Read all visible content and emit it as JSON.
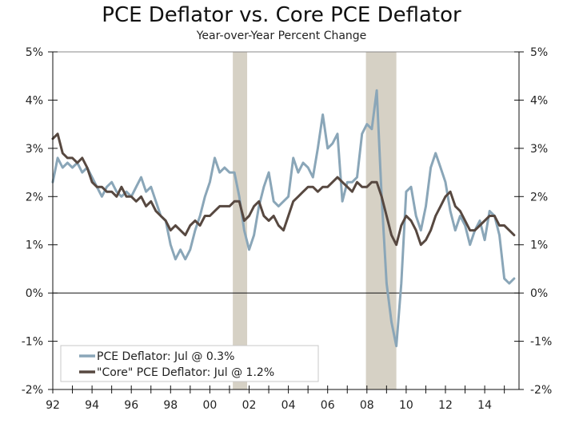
{
  "chart_data": {
    "type": "line",
    "title": "PCE Deflator vs. Core PCE Deflator",
    "subtitle": "Year-over-Year Percent Change",
    "xlabel": "",
    "ylabel": "",
    "xlim": [
      1992,
      2015.75
    ],
    "ylim": [
      -2,
      5
    ],
    "y_ticks": [
      -2,
      -1,
      0,
      1,
      2,
      3,
      4,
      5
    ],
    "y_tick_labels": [
      "-2%",
      "-1%",
      "0%",
      "1%",
      "2%",
      "3%",
      "4%",
      "5%"
    ],
    "x_ticks": [
      1992,
      1994,
      1996,
      1998,
      2000,
      2002,
      2004,
      2006,
      2008,
      2010,
      2012,
      2014
    ],
    "x_tick_labels": [
      "92",
      "94",
      "96",
      "98",
      "00",
      "02",
      "04",
      "06",
      "08",
      "10",
      "12",
      "14"
    ],
    "x_minor_ticks": [
      1993,
      1995,
      1997,
      1999,
      2001,
      2003,
      2005,
      2007,
      2009,
      2011,
      2013,
      2015
    ],
    "grid": false,
    "zero_line": true,
    "legend_position": "bottom-left",
    "recessions": [
      {
        "start": 2001.17,
        "end": 2001.9
      },
      {
        "start": 2007.95,
        "end": 2009.5
      }
    ],
    "colors": {
      "pce": "#8aa6b8",
      "core": "#574840",
      "recession": "#d6d1c5",
      "axis": "#111111"
    },
    "series": [
      {
        "name": "PCE Deflator: Jul @ 0.3%",
        "key": "pce",
        "x": [
          1992.0,
          1992.25,
          1992.5,
          1992.75,
          1993.0,
          1993.25,
          1993.5,
          1993.75,
          1994.0,
          1994.25,
          1994.5,
          1994.75,
          1995.0,
          1995.25,
          1995.5,
          1995.75,
          1996.0,
          1996.25,
          1996.5,
          1996.75,
          1997.0,
          1997.25,
          1997.5,
          1997.75,
          1998.0,
          1998.25,
          1998.5,
          1998.75,
          1999.0,
          1999.25,
          1999.5,
          1999.75,
          2000.0,
          2000.25,
          2000.5,
          2000.75,
          2001.0,
          2001.25,
          2001.5,
          2001.75,
          2002.0,
          2002.25,
          2002.5,
          2002.75,
          2003.0,
          2003.25,
          2003.5,
          2003.75,
          2004.0,
          2004.25,
          2004.5,
          2004.75,
          2005.0,
          2005.25,
          2005.5,
          2005.75,
          2006.0,
          2006.25,
          2006.5,
          2006.75,
          2007.0,
          2007.25,
          2007.5,
          2007.75,
          2008.0,
          2008.25,
          2008.5,
          2008.75,
          2009.0,
          2009.25,
          2009.5,
          2009.75,
          2010.0,
          2010.25,
          2010.5,
          2010.75,
          2011.0,
          2011.25,
          2011.5,
          2011.75,
          2012.0,
          2012.25,
          2012.5,
          2012.75,
          2013.0,
          2013.25,
          2013.5,
          2013.75,
          2014.0,
          2014.25,
          2014.5,
          2014.75,
          2015.0,
          2015.25,
          2015.5
        ],
        "values": [
          2.3,
          2.8,
          2.6,
          2.7,
          2.6,
          2.7,
          2.5,
          2.6,
          2.4,
          2.2,
          2.0,
          2.2,
          2.3,
          2.1,
          2.0,
          2.1,
          2.0,
          2.2,
          2.4,
          2.1,
          2.2,
          1.9,
          1.6,
          1.5,
          1.0,
          0.7,
          0.9,
          0.7,
          0.9,
          1.3,
          1.6,
          2.0,
          2.3,
          2.8,
          2.5,
          2.6,
          2.5,
          2.5,
          2.0,
          1.3,
          0.9,
          1.2,
          1.8,
          2.2,
          2.5,
          1.9,
          1.8,
          1.9,
          2.0,
          2.8,
          2.5,
          2.7,
          2.6,
          2.4,
          3.0,
          3.7,
          3.0,
          3.1,
          3.3,
          1.9,
          2.3,
          2.3,
          2.4,
          3.3,
          3.5,
          3.4,
          4.2,
          2.0,
          0.2,
          -0.6,
          -1.1,
          0.2,
          2.1,
          2.2,
          1.6,
          1.3,
          1.8,
          2.6,
          2.9,
          2.6,
          2.3,
          1.7,
          1.3,
          1.6,
          1.4,
          1.0,
          1.3,
          1.5,
          1.1,
          1.7,
          1.6,
          1.2,
          0.3,
          0.2,
          0.3
        ]
      },
      {
        "name": "\"Core\" PCE Deflator: Jul @ 1.2%",
        "key": "core",
        "x": [
          1992.0,
          1992.25,
          1992.5,
          1992.75,
          1993.0,
          1993.25,
          1993.5,
          1993.75,
          1994.0,
          1994.25,
          1994.5,
          1994.75,
          1995.0,
          1995.25,
          1995.5,
          1995.75,
          1996.0,
          1996.25,
          1996.5,
          1996.75,
          1997.0,
          1997.25,
          1997.5,
          1997.75,
          1998.0,
          1998.25,
          1998.5,
          1998.75,
          1999.0,
          1999.25,
          1999.5,
          1999.75,
          2000.0,
          2000.25,
          2000.5,
          2000.75,
          2001.0,
          2001.25,
          2001.5,
          2001.75,
          2002.0,
          2002.25,
          2002.5,
          2002.75,
          2003.0,
          2003.25,
          2003.5,
          2003.75,
          2004.0,
          2004.25,
          2004.5,
          2004.75,
          2005.0,
          2005.25,
          2005.5,
          2005.75,
          2006.0,
          2006.25,
          2006.5,
          2006.75,
          2007.0,
          2007.25,
          2007.5,
          2007.75,
          2008.0,
          2008.25,
          2008.5,
          2008.75,
          2009.0,
          2009.25,
          2009.5,
          2009.75,
          2010.0,
          2010.25,
          2010.5,
          2010.75,
          2011.0,
          2011.25,
          2011.5,
          2011.75,
          2012.0,
          2012.25,
          2012.5,
          2012.75,
          2013.0,
          2013.25,
          2013.5,
          2013.75,
          2014.0,
          2014.25,
          2014.5,
          2014.75,
          2015.0,
          2015.25,
          2015.5
        ],
        "values": [
          3.2,
          3.3,
          2.9,
          2.8,
          2.8,
          2.7,
          2.8,
          2.6,
          2.3,
          2.2,
          2.2,
          2.1,
          2.1,
          2.0,
          2.2,
          2.0,
          2.0,
          1.9,
          2.0,
          1.8,
          1.9,
          1.7,
          1.6,
          1.5,
          1.3,
          1.4,
          1.3,
          1.2,
          1.4,
          1.5,
          1.4,
          1.6,
          1.6,
          1.7,
          1.8,
          1.8,
          1.8,
          1.9,
          1.9,
          1.5,
          1.6,
          1.8,
          1.9,
          1.6,
          1.5,
          1.6,
          1.4,
          1.3,
          1.6,
          1.9,
          2.0,
          2.1,
          2.2,
          2.2,
          2.1,
          2.2,
          2.2,
          2.3,
          2.4,
          2.3,
          2.2,
          2.1,
          2.3,
          2.2,
          2.2,
          2.3,
          2.3,
          2.0,
          1.6,
          1.2,
          1.0,
          1.4,
          1.6,
          1.5,
          1.3,
          1.0,
          1.1,
          1.3,
          1.6,
          1.8,
          2.0,
          2.1,
          1.8,
          1.7,
          1.5,
          1.3,
          1.3,
          1.4,
          1.5,
          1.6,
          1.6,
          1.4,
          1.4,
          1.3,
          1.2
        ]
      }
    ]
  },
  "legend": {
    "items": [
      {
        "label": "PCE Deflator: Jul @ 0.3%",
        "color": "#8aa6b8"
      },
      {
        "label": "\"Core\" PCE Deflator: Jul @ 1.2%",
        "color": "#574840"
      }
    ]
  }
}
